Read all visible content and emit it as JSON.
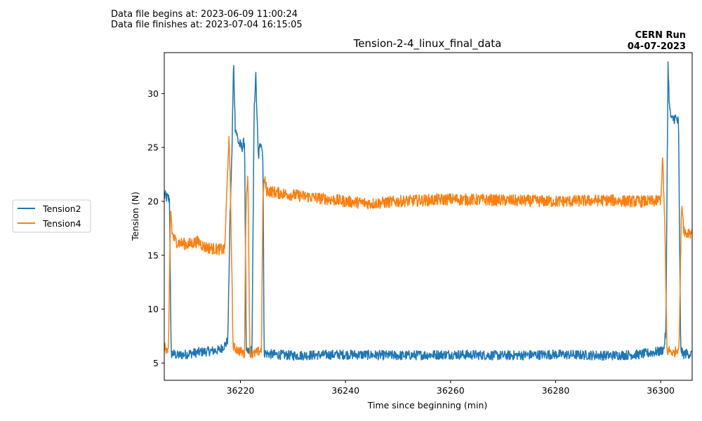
{
  "header": {
    "file_begins": "Data file begins at: 2023-06-09 11:00:24",
    "file_finishes": "Data file finishes at: 2023-07-04 16:15:05",
    "run_name": "CERN Run",
    "run_date": "04-07-2023"
  },
  "chart_data": {
    "type": "line",
    "title": "Tension-2-4_linux_final_data",
    "xlabel": "Time since beginning (min)",
    "ylabel": "Tension (N)",
    "xlim": [
      36205.5,
      36306
    ],
    "ylim": [
      3.4,
      33.8
    ],
    "xticks": [
      36220,
      36240,
      36260,
      36280,
      36300
    ],
    "yticks": [
      5,
      10,
      15,
      20,
      25,
      30
    ],
    "grid": false,
    "legend_position": "outside-left",
    "series": [
      {
        "name": "Tension2",
        "color": "#1f77b4",
        "x": [
          36205.5,
          36206.5,
          36206.8,
          36207,
          36208,
          36212,
          36216,
          36217.3,
          36217.6,
          36218,
          36218.4,
          36218.7,
          36219,
          36219.6,
          36220.2,
          36220.8,
          36221.1,
          36221.4,
          36222.2,
          36222.6,
          36222.9,
          36223.4,
          36223.9,
          36224.3,
          36224.5,
          36224.8,
          36226,
          36230,
          36240,
          36250,
          36260,
          36270,
          36280,
          36290,
          36296,
          36300,
          36300.6,
          36301,
          36301.4,
          36301.7,
          36302.1,
          36302.7,
          36303.4,
          36303.8,
          36304.2,
          36305,
          36306
        ],
        "y": [
          20.5,
          20.2,
          5.8,
          5.9,
          5.7,
          6.0,
          6.2,
          6.8,
          7.2,
          18.0,
          25.0,
          33.0,
          27.0,
          25.5,
          25.0,
          25.5,
          5.9,
          6.0,
          6.2,
          28.0,
          32.0,
          24.0,
          25.8,
          24.0,
          6.0,
          5.9,
          5.8,
          5.7,
          5.8,
          5.7,
          5.8,
          5.7,
          5.8,
          5.7,
          5.8,
          6.1,
          6.3,
          8.0,
          32.7,
          28.5,
          27.5,
          27.8,
          27.3,
          6.5,
          5.8,
          5.9,
          5.8
        ]
      },
      {
        "name": "Tension4",
        "color": "#ff7f0e",
        "x": [
          36205.5,
          36206.3,
          36206.7,
          36207,
          36207.4,
          36208,
          36210,
          36212,
          36213,
          36215,
          36217,
          36217.5,
          36217.8,
          36218.1,
          36218.6,
          36219.5,
          36220.3,
          36220.8,
          36221,
          36221.4,
          36221.8,
          36222.3,
          36223.2,
          36224,
          36224.3,
          36224.6,
          36225,
          36227,
          36230,
          36235,
          36240,
          36245,
          36250,
          36260,
          36270,
          36280,
          36290,
          36295,
          36299,
          36300,
          36300.4,
          36300.8,
          36301.2,
          36301.6,
          36302.5,
          36303.5,
          36304,
          36304.4,
          36304.8,
          36305.5,
          36306
        ],
        "y": [
          6.5,
          6.0,
          19.5,
          17.0,
          16.5,
          16.2,
          16.0,
          16.3,
          15.8,
          15.6,
          15.5,
          22.0,
          26.0,
          21.0,
          6.5,
          6.2,
          6.0,
          5.8,
          18.5,
          23.0,
          6.0,
          5.8,
          6.0,
          6.2,
          21.0,
          22.0,
          21.0,
          20.8,
          20.6,
          20.3,
          20.0,
          19.8,
          20.0,
          20.2,
          20.1,
          20.0,
          20.1,
          20.0,
          20.0,
          20.2,
          24.0,
          17.5,
          6.0,
          6.2,
          5.9,
          6.5,
          20.0,
          17.5,
          17.0,
          17.2,
          17.0
        ]
      }
    ]
  }
}
